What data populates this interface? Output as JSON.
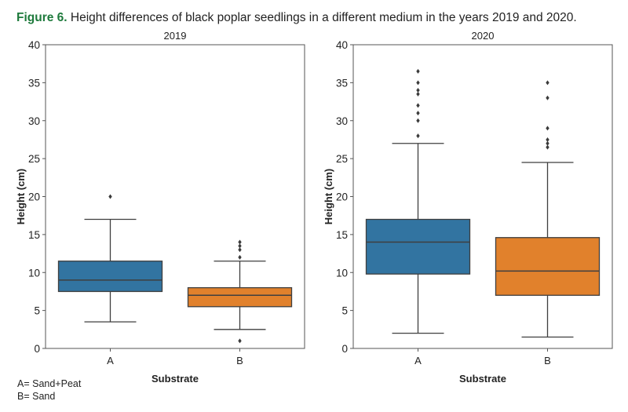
{
  "caption": {
    "label": "Figure 6.",
    "text": " Height differences of black poplar seedlings in a different medium in the years 2019 and 2020."
  },
  "legend": [
    "A= Sand+Peat",
    "B= Sand"
  ],
  "colors": {
    "A": "#3274a1",
    "B": "#e1812c",
    "caption_label": "#1e7a3c",
    "lines": "#3f3f3f"
  },
  "chart_data": [
    {
      "type": "box",
      "title": "2019",
      "xlabel": "Substrate",
      "ylabel": "Height (cm)",
      "ylim": [
        0,
        40
      ],
      "yticks": [
        0,
        5,
        10,
        15,
        20,
        25,
        30,
        35,
        40
      ],
      "categories": [
        "A",
        "B"
      ],
      "series": [
        {
          "name": "A",
          "whisker_low": 3.5,
          "q1": 7.5,
          "median": 9,
          "q3": 11.5,
          "whisker_high": 17,
          "outliers": [
            20
          ]
        },
        {
          "name": "B",
          "whisker_low": 2.5,
          "q1": 5.5,
          "median": 7,
          "q3": 8,
          "whisker_high": 11.5,
          "outliers": [
            1,
            12,
            13,
            13.5,
            14
          ]
        }
      ],
      "grid": false
    },
    {
      "type": "box",
      "title": "2020",
      "xlabel": "Substrate",
      "ylabel": "Height (cm)",
      "ylim": [
        0,
        40
      ],
      "yticks": [
        0,
        5,
        10,
        15,
        20,
        25,
        30,
        35,
        40
      ],
      "categories": [
        "A",
        "B"
      ],
      "series": [
        {
          "name": "A",
          "whisker_low": 2,
          "q1": 9.8,
          "median": 14,
          "q3": 17,
          "whisker_high": 27,
          "outliers": [
            28,
            30,
            31,
            32,
            33.5,
            34,
            35,
            36.5
          ]
        },
        {
          "name": "B",
          "whisker_low": 1.5,
          "q1": 7,
          "median": 10.2,
          "q3": 14.6,
          "whisker_high": 24.5,
          "outliers": [
            26.5,
            27,
            27.5,
            29,
            33,
            35
          ]
        }
      ],
      "grid": false
    }
  ]
}
